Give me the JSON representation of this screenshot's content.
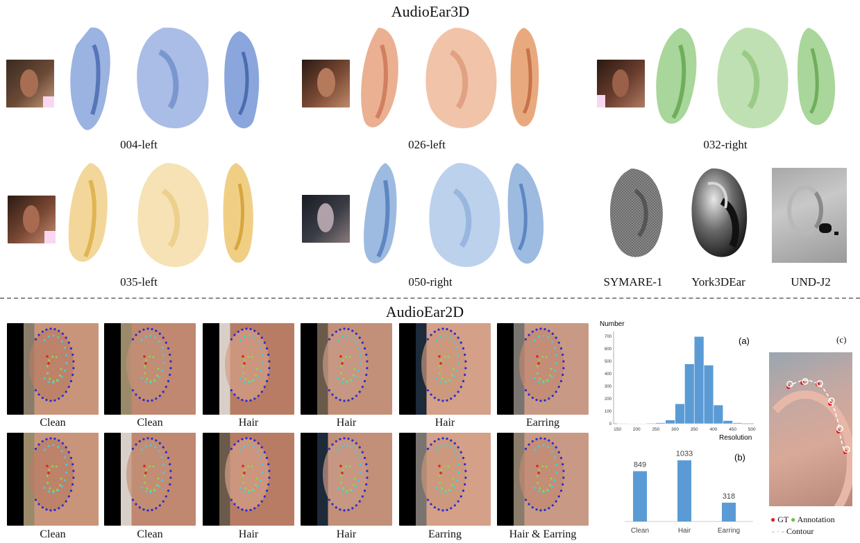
{
  "sections": {
    "top_title": "AudioEar3D",
    "bottom_title": "AudioEar2D"
  },
  "audioear3d": {
    "captions": [
      "004-left",
      "026-left",
      "032-right",
      "035-left",
      "050-right"
    ],
    "datasets": [
      "SYMARE-1",
      "York3DEar",
      "UND-J2"
    ],
    "colors": {
      "blue": "#7f9fd6",
      "orange": "#e8a783",
      "green": "#a8d49a",
      "yellow": "#f0d38c",
      "lightblue": "#9dbbe0"
    }
  },
  "audioear2d": {
    "row1_labels": [
      "Clean",
      "Clean",
      "Hair",
      "Hair",
      "Hair",
      "Earring"
    ],
    "row2_labels": [
      "Clean",
      "Clean",
      "Hair",
      "Hair",
      "Earring",
      "Hair & Earring"
    ]
  },
  "panel_labels": {
    "a": "(a)",
    "b": "(b)",
    "c": "(c)"
  },
  "legend_c": {
    "gt": "GT",
    "annotation": "Annotation",
    "contour": "Contour"
  },
  "chart_data": [
    {
      "type": "bar",
      "name_label": "(a)",
      "ylabel": "Number",
      "xlabel": "Resolution",
      "x_ticks": [
        150,
        200,
        250,
        300,
        350,
        400,
        450,
        500
      ],
      "y_ticks": [
        0,
        100,
        200,
        300,
        400,
        500,
        600,
        700
      ],
      "ylim": [
        0,
        740
      ],
      "xlim": [
        140,
        505
      ],
      "bins": [
        {
          "x0": 150,
          "x1": 175,
          "value": 4
        },
        {
          "x0": 175,
          "x1": 200,
          "value": 3
        },
        {
          "x0": 200,
          "x1": 225,
          "value": 2
        },
        {
          "x0": 225,
          "x1": 250,
          "value": 5
        },
        {
          "x0": 250,
          "x1": 275,
          "value": 8
        },
        {
          "x0": 275,
          "x1": 300,
          "value": 30
        },
        {
          "x0": 300,
          "x1": 325,
          "value": 160
        },
        {
          "x0": 325,
          "x1": 350,
          "value": 480
        },
        {
          "x0": 350,
          "x1": 375,
          "value": 700
        },
        {
          "x0": 375,
          "x1": 400,
          "value": 470
        },
        {
          "x0": 400,
          "x1": 425,
          "value": 150
        },
        {
          "x0": 425,
          "x1": 450,
          "value": 25
        },
        {
          "x0": 450,
          "x1": 475,
          "value": 8
        }
      ],
      "color": "#5b9bd5"
    },
    {
      "type": "bar",
      "name_label": "(b)",
      "categories": [
        "Clean",
        "Hair",
        "Earring"
      ],
      "values": [
        849,
        1033,
        318
      ],
      "ylim": [
        0,
        1100
      ],
      "color": "#5b9bd5"
    }
  ]
}
